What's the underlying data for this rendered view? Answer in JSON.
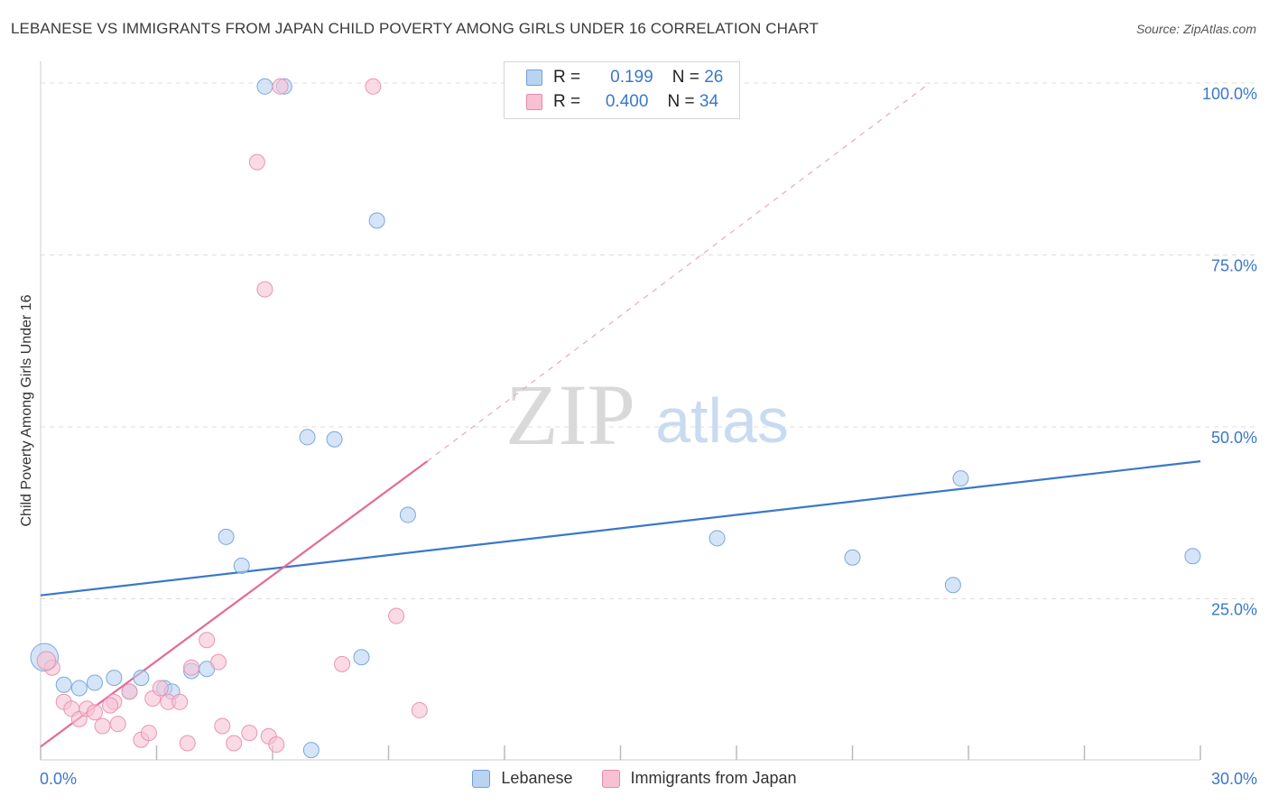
{
  "title": "LEBANESE VS IMMIGRANTS FROM JAPAN CHILD POVERTY AMONG GIRLS UNDER 16 CORRELATION CHART",
  "source": "Source: ZipAtlas.com",
  "watermark": {
    "zip": "ZIP",
    "atlas": "atlas"
  },
  "legend": {
    "r_label": "R =",
    "n_label": "N =",
    "series": [
      {
        "r": "0.199",
        "n": "26"
      },
      {
        "r": "0.400",
        "n": "34"
      }
    ]
  },
  "chart_data": {
    "type": "scatter",
    "xlabel": "",
    "ylabel": "Child Poverty Among Girls Under 16",
    "xlim": [
      0,
      30
    ],
    "ylim": [
      0,
      100
    ],
    "x_tick_labels": {
      "min": "0.0%",
      "max": "30.0%"
    },
    "y_tick_labels": [
      "25.0%",
      "50.0%",
      "75.0%",
      "100.0%"
    ],
    "y_ticks": [
      25,
      50,
      75,
      100
    ],
    "colors": {
      "blue": "#3a78c9",
      "pink": "#e46a96",
      "blue_fill": "#b9d3f2",
      "pink_fill": "#f7c1d3"
    },
    "series": [
      {
        "name": "Lebanese",
        "color": "blue",
        "r": 0.199,
        "n": 26,
        "trend": {
          "x": [
            0,
            30
          ],
          "y": [
            25.5,
            45.0
          ],
          "dashed_extension": false
        },
        "points": [
          [
            0.1,
            16.5,
            1.8
          ],
          [
            0.6,
            12.5,
            1
          ],
          [
            1.0,
            12.0,
            1
          ],
          [
            1.4,
            12.8,
            1
          ],
          [
            1.9,
            13.5,
            1
          ],
          [
            2.3,
            11.5,
            1
          ],
          [
            2.6,
            13.5,
            1
          ],
          [
            3.2,
            12.0,
            1
          ],
          [
            3.4,
            11.5,
            1
          ],
          [
            3.9,
            14.5,
            1
          ],
          [
            4.3,
            14.8,
            1
          ],
          [
            4.8,
            34.0,
            1
          ],
          [
            5.2,
            29.8,
            1
          ],
          [
            5.8,
            99.5,
            1
          ],
          [
            6.3,
            99.5,
            1
          ],
          [
            7.0,
            3.0,
            1
          ],
          [
            6.9,
            48.5,
            1
          ],
          [
            7.6,
            48.2,
            1
          ],
          [
            8.3,
            16.5,
            1
          ],
          [
            8.7,
            80.0,
            1
          ],
          [
            9.5,
            37.2,
            1
          ],
          [
            17.5,
            33.8,
            1
          ],
          [
            21.0,
            31.0,
            1
          ],
          [
            23.8,
            42.5,
            1
          ],
          [
            23.6,
            27.0,
            1
          ],
          [
            29.8,
            31.2,
            1
          ]
        ]
      },
      {
        "name": "Immigrants from Japan",
        "color": "pink",
        "r": 0.4,
        "n": 34,
        "trend": {
          "x": [
            0,
            10.0
          ],
          "y": [
            3.5,
            45.0
          ],
          "dash_x": [
            10.0,
            23.0
          ],
          "dash_y": [
            45.0,
            100.0
          ]
        },
        "points": [
          [
            0.3,
            15.0,
            1
          ],
          [
            0.6,
            10.0,
            1
          ],
          [
            0.8,
            9.0,
            1
          ],
          [
            1.0,
            7.5,
            1
          ],
          [
            1.2,
            9.0,
            1
          ],
          [
            1.4,
            8.5,
            1
          ],
          [
            1.6,
            6.5,
            1
          ],
          [
            1.9,
            10.0,
            1
          ],
          [
            2.0,
            6.8,
            1
          ],
          [
            2.3,
            11.5,
            1
          ],
          [
            2.6,
            4.5,
            1
          ],
          [
            2.8,
            5.5,
            1
          ],
          [
            2.9,
            10.5,
            1
          ],
          [
            3.1,
            12.0,
            1
          ],
          [
            3.3,
            10.0,
            1
          ],
          [
            3.6,
            10.0,
            1
          ],
          [
            3.8,
            4.0,
            1
          ],
          [
            3.9,
            15.0,
            1
          ],
          [
            4.3,
            19.0,
            1
          ],
          [
            4.6,
            15.8,
            1
          ],
          [
            4.7,
            6.5,
            1
          ],
          [
            5.0,
            4.0,
            1
          ],
          [
            5.4,
            5.5,
            1
          ],
          [
            5.6,
            88.5,
            1
          ],
          [
            5.8,
            70.0,
            1
          ],
          [
            5.9,
            5.0,
            1
          ],
          [
            6.1,
            3.8,
            1
          ],
          [
            6.2,
            99.5,
            1
          ],
          [
            7.8,
            15.5,
            1
          ],
          [
            8.6,
            99.5,
            1
          ],
          [
            9.2,
            22.5,
            1
          ],
          [
            9.8,
            8.8,
            1
          ],
          [
            0.15,
            16.0,
            1.2
          ],
          [
            1.8,
            9.5,
            1
          ]
        ]
      }
    ]
  }
}
